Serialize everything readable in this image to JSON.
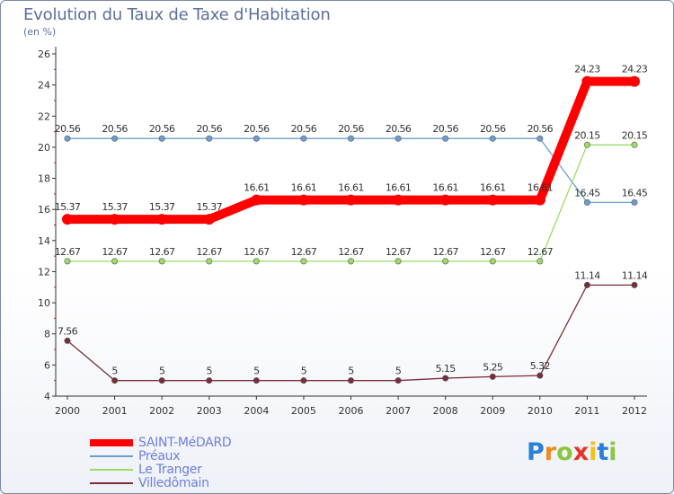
{
  "header": {
    "title": "Evolution du Taux de Taxe d'Habitation",
    "unit": "(en %)"
  },
  "chart_data": {
    "type": "line",
    "title": "Evolution du Taux de Taxe d'Habitation",
    "ylabel": "(en %)",
    "xlabel": "",
    "ylim": [
      4,
      26
    ],
    "y_ticks": [
      "4",
      "6",
      "8",
      "10",
      "12",
      "14",
      "16",
      "18",
      "20",
      "22",
      "24",
      "26"
    ],
    "categories": [
      "2000",
      "2001",
      "2002",
      "2003",
      "2004",
      "2005",
      "2006",
      "2007",
      "2008",
      "2009",
      "2010",
      "2011",
      "2012"
    ],
    "grid": false,
    "legend_position": "bottom-left",
    "series": [
      {
        "name": "SAINT-MéDARD",
        "color": "#ff0000",
        "values": [
          15.37,
          15.37,
          15.37,
          15.37,
          16.61,
          16.61,
          16.61,
          16.61,
          16.61,
          16.61,
          16.61,
          24.23,
          24.23
        ],
        "labels": [
          "15.37",
          "15.37",
          "15.37",
          "15.37",
          "16.61",
          "16.61",
          "16.61",
          "16.61",
          "16.61",
          "16.61",
          "16.61",
          "24.23",
          "24.23"
        ]
      },
      {
        "name": "Préaux",
        "color": "#6c9fd0",
        "values": [
          20.56,
          20.56,
          20.56,
          20.56,
          20.56,
          20.56,
          20.56,
          20.56,
          20.56,
          20.56,
          20.56,
          16.45,
          16.45
        ],
        "labels": [
          "20.56",
          "20.56",
          "20.56",
          "20.56",
          "20.56",
          "20.56",
          "20.56",
          "20.56",
          "20.56",
          "20.56",
          "20.56",
          "16.45",
          "16.45"
        ]
      },
      {
        "name": "Le Tranger",
        "color": "#99dd66",
        "values": [
          12.67,
          12.67,
          12.67,
          12.67,
          12.67,
          12.67,
          12.67,
          12.67,
          12.67,
          12.67,
          12.67,
          20.15,
          20.15
        ],
        "labels": [
          "12.67",
          "12.67",
          "12.67",
          "12.67",
          "12.67",
          "12.67",
          "12.67",
          "12.67",
          "12.67",
          "12.67",
          "12.67",
          "20.15",
          "20.15"
        ]
      },
      {
        "name": "Villedômain",
        "color": "#7a2e38",
        "values": [
          7.56,
          5,
          5,
          5,
          5,
          5,
          5,
          5,
          5.15,
          5.25,
          5.32,
          11.14,
          11.14
        ],
        "labels": [
          "7.56",
          "5",
          "5",
          "5",
          "5",
          "5",
          "5",
          "5",
          "5.15",
          "5.25",
          "5.32",
          "11.14",
          "11.14"
        ]
      }
    ]
  },
  "logo": {
    "text": "Proxiti",
    "letters": [
      "P",
      "r",
      "o",
      "x",
      "i",
      "t",
      "i"
    ],
    "colors": [
      "#2a7fd6",
      "#f08a1a",
      "#8bc63f",
      "#e8332a",
      "#f2c11a",
      "#2a7fd6",
      "#8bc63f"
    ]
  }
}
